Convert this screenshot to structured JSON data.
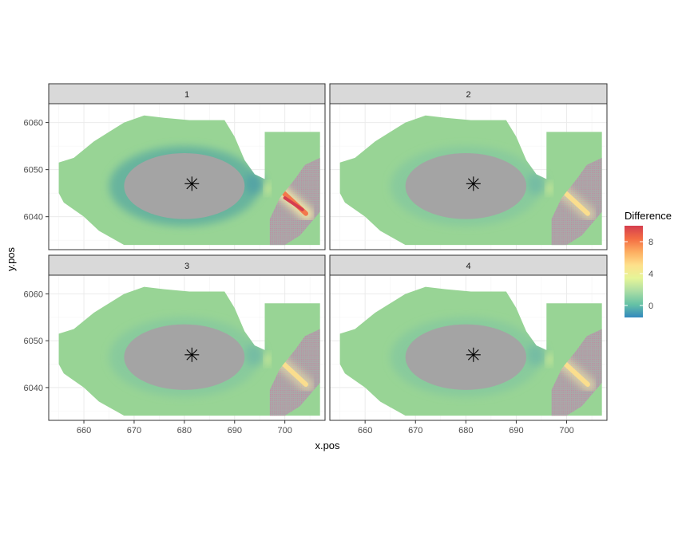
{
  "chart_data": {
    "type": "heatmap",
    "facet_layout": "2x2",
    "facets": [
      {
        "label": "1",
        "hotspot_intensity": 1.0
      },
      {
        "label": "2",
        "hotspot_intensity": 0.42
      },
      {
        "label": "3",
        "hotspot_intensity": 0.45
      },
      {
        "label": "4",
        "hotspot_intensity": 0.52
      }
    ],
    "xlabel": "x.pos",
    "ylabel": "y.pos",
    "xlim": [
      653,
      708
    ],
    "ylim": [
      6033,
      6064
    ],
    "x_ticks": [
      660,
      670,
      680,
      690,
      700
    ],
    "x_tick_labels": [
      "660",
      "670",
      "680",
      "690",
      "700"
    ],
    "y_ticks": [
      6040,
      6050,
      6060
    ],
    "y_tick_labels": [
      "6040",
      "6050",
      "6060"
    ],
    "legend": {
      "title": "Difference",
      "position": "right",
      "min": -1.5,
      "max": 10,
      "ticks": [
        0,
        4,
        8
      ],
      "tick_labels": [
        "0",
        "4",
        "8"
      ],
      "colors": [
        "#3288bd",
        "#66c2a5",
        "#abdda4",
        "#e6f598",
        "#fee08b",
        "#fdae61",
        "#f46d43",
        "#d53e4f"
      ]
    },
    "marker": {
      "x": 681.5,
      "y": 6047,
      "symbol": "asterisk"
    },
    "grid": true,
    "background_fill": "#98d495",
    "overlay_color": "#a4a4a4"
  }
}
